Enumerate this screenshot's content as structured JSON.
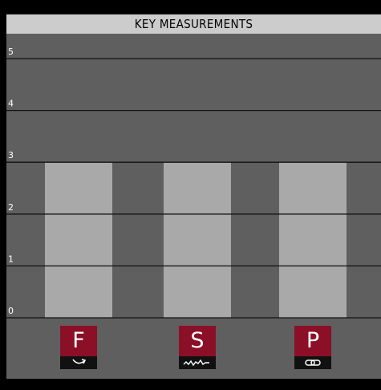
{
  "chart_data": {
    "type": "bar",
    "title": "KEY MEASUREMENTS",
    "categories": [
      "F",
      "S",
      "P"
    ],
    "values": [
      3,
      3,
      3
    ],
    "ylim": [
      0,
      5
    ],
    "yticks": [
      "0",
      "1",
      "2",
      "3",
      "4",
      "5"
    ],
    "grid": true,
    "legend": "none",
    "category_icons": [
      "rotate-arrow-icon",
      "wave-icon",
      "link-icon"
    ]
  },
  "colors": {
    "background": "#000000",
    "plot_bg": "#5f5f5f",
    "title_bg": "#cccccc",
    "bar": "#a9a9a9",
    "grid": "#111111",
    "badge": "#8b0f26",
    "badge_icon_bg": "#111111"
  }
}
